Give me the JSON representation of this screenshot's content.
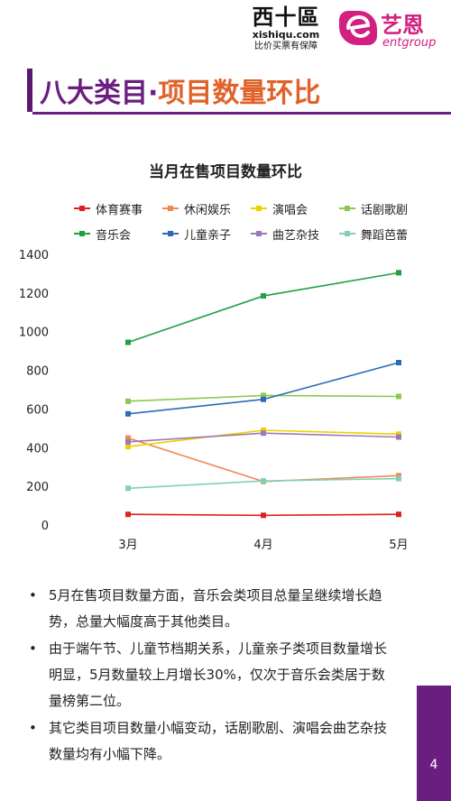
{
  "header": {
    "xishiqu_name": "西十區",
    "xishiqu_url": "xishiqu.com",
    "xishiqu_slogan": "比价买票有保障",
    "ent_name": "艺恩",
    "ent_name_en": "entgroup",
    "brand_color": "#d21f80"
  },
  "title": {
    "part1": "八大类目·",
    "part2": "项目数量环比",
    "color1": "#6a1f80",
    "color2": "#e0622a"
  },
  "chart_data": {
    "type": "line",
    "title": "当月在售项目数量环比",
    "categories": [
      "3月",
      "4月",
      "5月"
    ],
    "ylim": [
      0,
      1400
    ],
    "yticks": [
      "0",
      "200",
      "400",
      "600",
      "800",
      "1000",
      "1200",
      "1400"
    ],
    "grid": false,
    "legend_position": "top",
    "series": [
      {
        "name": "体育赛事",
        "color": "#e02020",
        "values": [
          55,
          50,
          55
        ]
      },
      {
        "name": "休闲娱乐",
        "color": "#f08a50",
        "values": [
          450,
          225,
          255
        ]
      },
      {
        "name": "演唱会",
        "color": "#f0d000",
        "values": [
          405,
          490,
          470
        ]
      },
      {
        "name": "话剧歌剧",
        "color": "#8cc850",
        "values": [
          640,
          670,
          665
        ]
      },
      {
        "name": "音乐会",
        "color": "#20a040",
        "values": [
          945,
          1185,
          1305
        ]
      },
      {
        "name": "儿童亲子",
        "color": "#2a6ab8",
        "values": [
          575,
          650,
          840
        ]
      },
      {
        "name": "曲艺杂技",
        "color": "#9a7ab8",
        "values": [
          430,
          475,
          455
        ]
      },
      {
        "name": "舞蹈芭蕾",
        "color": "#80d0b8",
        "values": [
          190,
          228,
          240
        ]
      }
    ]
  },
  "bullets": [
    "5月在售项目数量方面，音乐会类项目总量呈继续增长趋势，总量大幅度高于其他类目。",
    "由于端午节、儿童节档期关系，儿童亲子类项目数量增长明显，5月数量较上月增长30%，仅次于音乐会类居于数量榜第二位。",
    "其它类目项目数量小幅变动，话剧歌剧、演唱会曲艺杂技数量均有小幅下降。"
  ],
  "bullet_symbol": "•",
  "page_number": "4"
}
